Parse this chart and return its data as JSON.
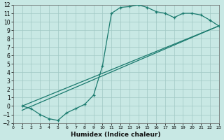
{
  "xlabel": "Humidex (Indice chaleur)",
  "bg_color": "#c8e8e4",
  "grid_color": "#a0c8c4",
  "line_color": "#1a7a6e",
  "xlim": [
    0,
    23
  ],
  "ylim": [
    -2,
    12
  ],
  "xticks": [
    0,
    1,
    2,
    3,
    4,
    5,
    6,
    7,
    8,
    9,
    10,
    11,
    12,
    13,
    14,
    15,
    16,
    17,
    18,
    19,
    20,
    21,
    22,
    23
  ],
  "yticks": [
    -2,
    -1,
    0,
    1,
    2,
    3,
    4,
    5,
    6,
    7,
    8,
    9,
    10,
    11,
    12
  ],
  "curve_x": [
    1,
    2,
    3,
    4,
    5,
    6,
    7,
    8,
    9,
    10,
    11,
    12,
    13,
    14,
    15,
    16,
    17,
    18,
    19,
    20,
    21,
    22,
    23
  ],
  "curve_y": [
    0,
    -0.3,
    -1.0,
    -1.5,
    -1.7,
    -0.8,
    -0.3,
    0.2,
    1.3,
    4.8,
    11.0,
    11.7,
    11.8,
    12.0,
    11.7,
    11.2,
    11.0,
    10.5,
    11.0,
    11.0,
    10.8,
    10.2,
    9.5
  ],
  "line1_x": [
    1,
    23
  ],
  "line1_y": [
    0,
    9.5
  ],
  "line2_x": [
    1,
    23
  ],
  "line2_y": [
    -0.5,
    9.5
  ]
}
